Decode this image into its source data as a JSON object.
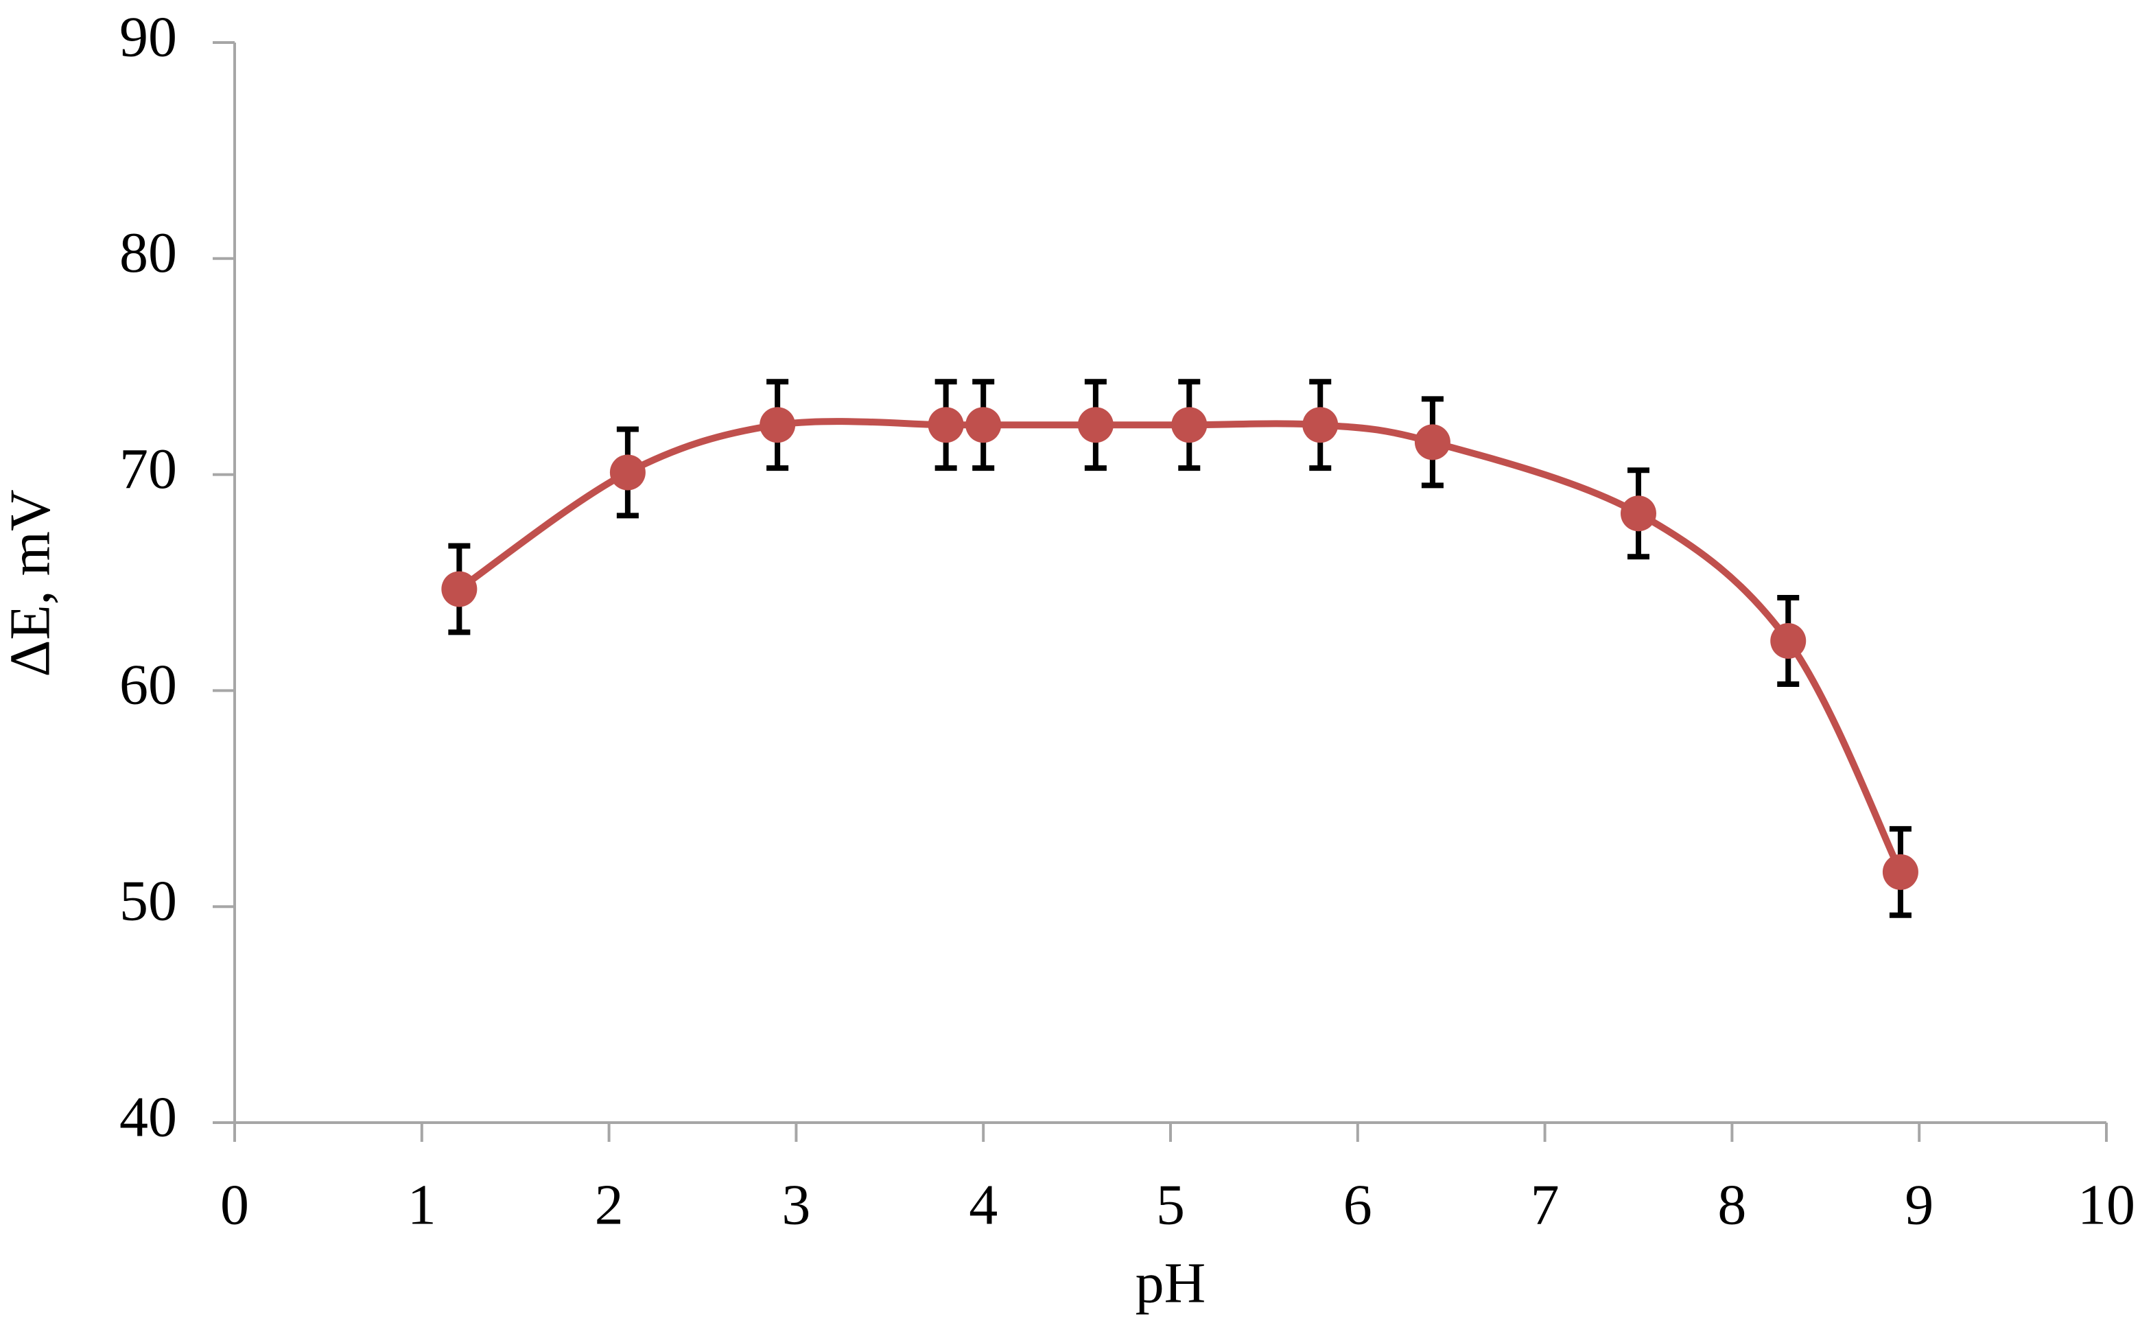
{
  "chart_data": {
    "type": "line",
    "xlabel": "pH",
    "ylabel": "ΔE, mV",
    "x": [
      1.2,
      2.1,
      2.9,
      3.8,
      4.0,
      4.6,
      5.1,
      5.8,
      6.4,
      7.5,
      8.3,
      8.9
    ],
    "series": [
      {
        "color": "#c0504d",
        "error_color": "#000000",
        "values": [
          64.7,
          70.1,
          72.3,
          72.3,
          72.3,
          72.3,
          72.3,
          72.3,
          71.5,
          68.2,
          62.3,
          51.6
        ],
        "errors": [
          2,
          2,
          2,
          2,
          2,
          2,
          2,
          2,
          2,
          2,
          2,
          2
        ]
      }
    ],
    "xlim": [
      0,
      10
    ],
    "xticks": [
      0,
      1,
      2,
      3,
      4,
      5,
      6,
      7,
      8,
      9,
      10
    ],
    "ylim": [
      40,
      90
    ],
    "yticks": [
      40,
      50,
      60,
      70,
      80,
      90
    ],
    "smooth": true
  }
}
